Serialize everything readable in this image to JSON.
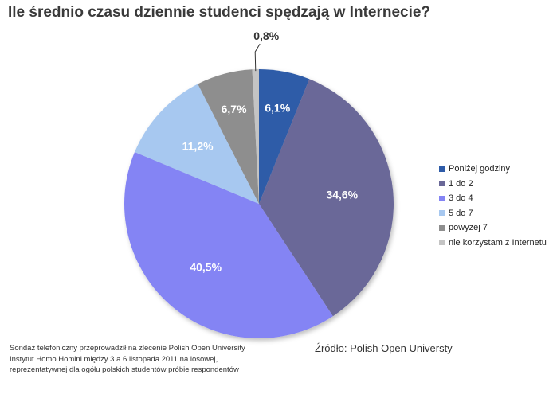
{
  "title": "Ile średnio czasu dziennie studenci spędzają w Internecie?",
  "chart_data": {
    "type": "pie",
    "categories": [
      "Poniżej godziny",
      "1 do 2",
      "3 do 4",
      "5 do 7",
      "powyżej 7",
      "nie korzystam z Internetu"
    ],
    "values": [
      6.1,
      34.6,
      40.5,
      11.2,
      6.7,
      0.8
    ],
    "value_labels": [
      "6,1%",
      "34,6%",
      "40,5%",
      "11,2%",
      "6,7%",
      "0,8%"
    ],
    "colors": [
      "#2e5ba8",
      "#6a6898",
      "#8484f4",
      "#a7c8f0",
      "#8e8e8e",
      "#c4c4c4"
    ],
    "start": "12 o'clock",
    "direction": "clockwise",
    "legend_position": "right"
  },
  "note": "Sondaż telefoniczny przeprowadził na zlecenie Polish Open University Instytut Homo Homini między 3 a 6 listopada 2011 na losowej, reprezentatywnej dla ogółu polskich studentów próbie respondentów",
  "source": "Źródło: Polish Open Universty"
}
